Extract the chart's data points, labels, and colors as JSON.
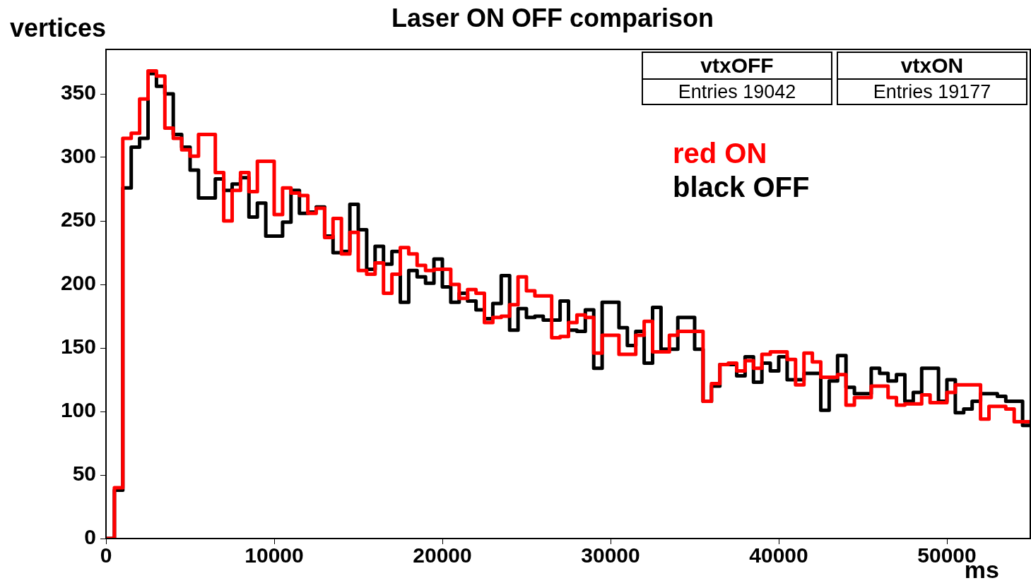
{
  "chart_data": {
    "type": "histogram",
    "title": "Laser ON OFF comparison",
    "xlabel": "ms",
    "ylabel": "vertices",
    "annotations": [
      "vtxOFF",
      "Entries 19042",
      "vtxON",
      "Entries 19177"
    ],
    "bins": [
      0,
      500,
      1000,
      1500,
      2000,
      2500,
      3000,
      3500,
      4000,
      4500,
      5000,
      5500,
      6000,
      6500,
      7000,
      7500,
      8000,
      8500,
      9000,
      9500,
      10000,
      10500,
      11000,
      11500,
      12000,
      12500,
      13000,
      13500,
      14000,
      14500,
      15000,
      15500,
      16000,
      16500,
      17000,
      17500,
      18000,
      18500,
      19000,
      19500,
      20000,
      20500,
      21000,
      21500,
      22000,
      22500,
      23000,
      23500,
      24000,
      24500,
      25000,
      25500,
      26000,
      26500,
      27000,
      27500,
      28000,
      28500,
      29000,
      29500,
      30000,
      30500,
      31000,
      31500,
      32000,
      32500,
      33000,
      33500,
      34000,
      34500,
      35000,
      35500,
      36000,
      36500,
      37000,
      37500,
      38000,
      38500,
      39000,
      39500,
      40000,
      40500,
      41000,
      41500,
      42000,
      42500,
      43000,
      43500,
      44000,
      44500,
      45000,
      45500,
      46000,
      46500,
      47000,
      47500,
      48000,
      48500,
      49000,
      49500,
      50000,
      50500,
      51000,
      51500,
      52000,
      52500,
      53000,
      53500,
      54000,
      54500,
      55000
    ],
    "series": [
      {
        "name": "red ON",
        "color": "#ff0000",
        "values": [
          0,
          40,
          315,
          319,
          346,
          368,
          364,
          323,
          315,
          306,
          301,
          318,
          318,
          288,
          250,
          274,
          288,
          273,
          297,
          297,
          255,
          276,
          272,
          270,
          256,
          260,
          237,
          252,
          224,
          241,
          211,
          208,
          217,
          193,
          208,
          229,
          224,
          215,
          211,
          212,
          212,
          200,
          189,
          196,
          193,
          170,
          174,
          175,
          184,
          206,
          195,
          191,
          191,
          158,
          159,
          170,
          176,
          174,
          146,
          160,
          160,
          145,
          145,
          160,
          171,
          147,
          147,
          160,
          163,
          163,
          163,
          108,
          122,
          137,
          138,
          132,
          140,
          134,
          145,
          147,
          147,
          141,
          121,
          146,
          139,
          127,
          127,
          129,
          105,
          111,
          111,
          120,
          120,
          111,
          105,
          106,
          106,
          113,
          107,
          107,
          115,
          121,
          121,
          121,
          94,
          104,
          104,
          102,
          92,
          92
        ]
      },
      {
        "name": "black OFF",
        "color": "#000000",
        "values": [
          0,
          38,
          276,
          308,
          315,
          366,
          356,
          350,
          318,
          308,
          290,
          268,
          268,
          283,
          274,
          279,
          284,
          253,
          264,
          238,
          238,
          249,
          274,
          256,
          257,
          261,
          238,
          225,
          226,
          263,
          243,
          212,
          230,
          216,
          226,
          186,
          211,
          206,
          201,
          220,
          198,
          186,
          193,
          187,
          180,
          173,
          185,
          207,
          164,
          181,
          174,
          175,
          172,
          172,
          187,
          164,
          163,
          180,
          134,
          186,
          186,
          166,
          152,
          163,
          138,
          182,
          149,
          149,
          174,
          174,
          149,
          108,
          120,
          137,
          137,
          128,
          143,
          123,
          138,
          132,
          143,
          125,
          125,
          130,
          130,
          101,
          124,
          144,
          119,
          114,
          114,
          134,
          130,
          124,
          129,
          108,
          115,
          134,
          134,
          108,
          125,
          99,
          102,
          108,
          114,
          114,
          112,
          108,
          108,
          89
        ]
      }
    ],
    "xlim": [
      0,
      55000
    ],
    "xticks": [
      0,
      10000,
      20000,
      30000,
      40000,
      50000
    ],
    "ylim": [
      0,
      385
    ],
    "yticks": [
      0,
      50,
      100,
      150,
      200,
      250,
      300,
      350
    ]
  }
}
